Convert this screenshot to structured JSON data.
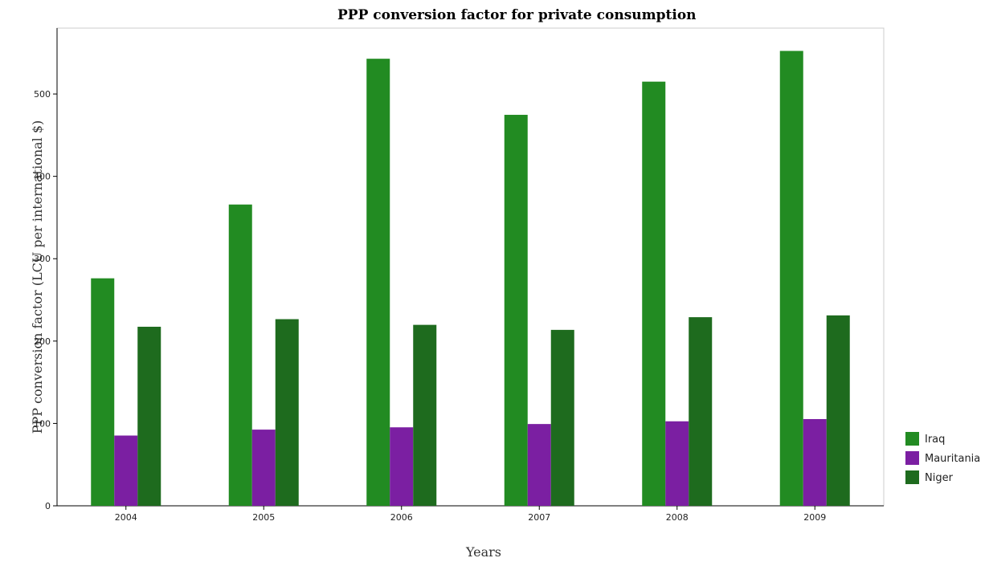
{
  "chart_data": {
    "type": "bar",
    "title": "PPP conversion factor for private consumption",
    "xlabel": "Years",
    "ylabel": "PPP conversion factor (LCU per international $)",
    "categories": [
      "2004",
      "2005",
      "2006",
      "2007",
      "2008",
      "2009"
    ],
    "ylim": [
      0,
      580
    ],
    "yticks": [
      0,
      100,
      200,
      300,
      400,
      500
    ],
    "grid": false,
    "legend_position": "bottom-right",
    "series": [
      {
        "name": "Iraq",
        "color": "#228b22",
        "values": [
          276.2,
          365.8,
          542.8,
          474.7,
          515.0,
          552.3
        ]
      },
      {
        "name": "Mauritania",
        "color": "#7b1fa2",
        "values": [
          85.3,
          92.5,
          95.3,
          99.3,
          102.6,
          105.3
        ]
      },
      {
        "name": "Niger",
        "color": "#1e6b1e",
        "values": [
          217.4,
          226.6,
          219.7,
          213.6,
          229.0,
          231.2
        ]
      }
    ]
  }
}
